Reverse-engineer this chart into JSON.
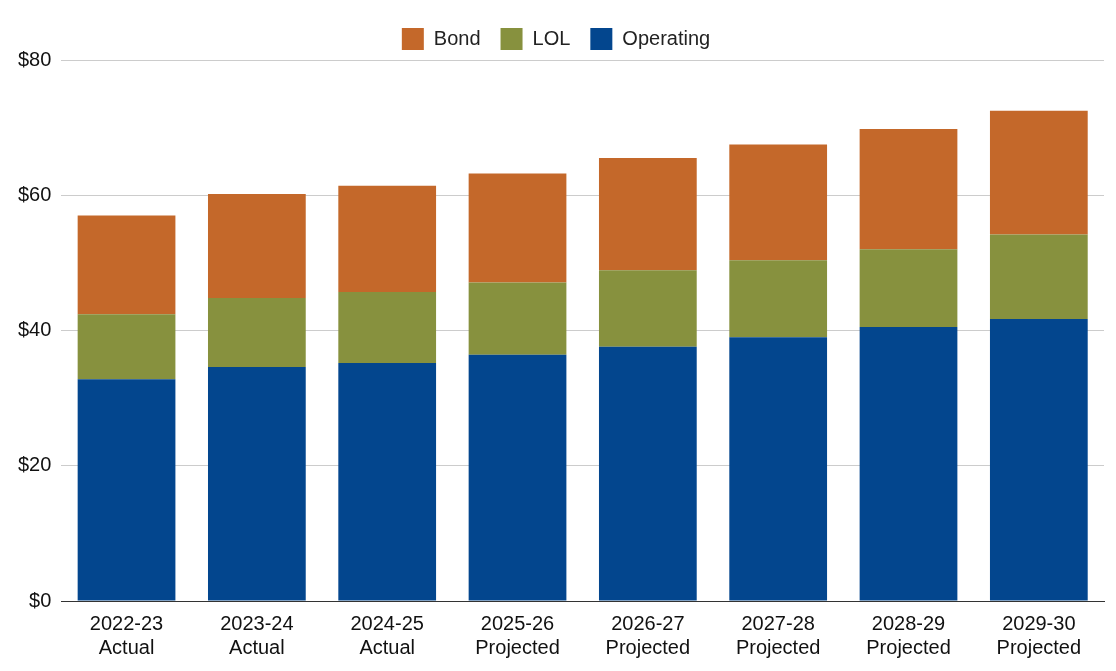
{
  "chart_data": {
    "type": "bar",
    "stacked": true,
    "categories": [
      "2022-23\nActual",
      "2023-24\nActual",
      "2024-25\nActual",
      "2025-26\nProjected",
      "2026-27\nProjected",
      "2027-28\nProjected",
      "2028-29\nProjected",
      "2029-30\nProjected"
    ],
    "series": [
      {
        "name": "Operating",
        "color": "#03468e",
        "values": [
          32.8,
          34.6,
          35.2,
          36.4,
          37.6,
          39.0,
          40.5,
          41.7
        ]
      },
      {
        "name": "LOL",
        "color": "#87913e",
        "values": [
          9.6,
          10.2,
          10.5,
          10.7,
          11.3,
          11.4,
          11.5,
          12.5
        ]
      },
      {
        "name": "Bond",
        "color": "#c4682a",
        "values": [
          14.6,
          15.4,
          15.7,
          16.1,
          16.6,
          17.1,
          17.8,
          18.3
        ]
      }
    ],
    "ylim": [
      0,
      80
    ],
    "yticks": [
      {
        "value": 0,
        "label": "$0"
      },
      {
        "value": 20,
        "label": "$20"
      },
      {
        "value": 40,
        "label": "$40"
      },
      {
        "value": 60,
        "label": "$60"
      },
      {
        "value": 80,
        "label": "$80"
      }
    ],
    "grid": "y",
    "legend": "top"
  }
}
